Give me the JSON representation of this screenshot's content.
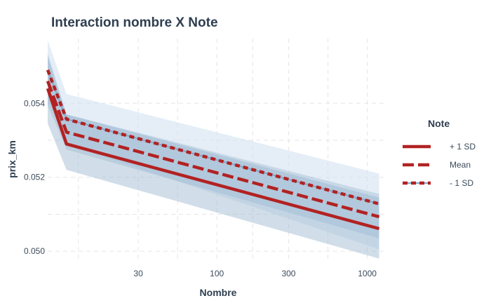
{
  "chart_data": {
    "type": "line",
    "title": "Interaction nombre X Note",
    "xlabel": "Nombre",
    "ylabel": "prix_km",
    "x_scale": "log",
    "x_ticks": [
      30,
      100,
      300,
      1000
    ],
    "x_tick_labels": [
      "30",
      "100",
      "300",
      "1000"
    ],
    "y_ticks": [
      0.05,
      0.052,
      0.054
    ],
    "y_tick_labels": [
      "0.050",
      "0.052",
      "0.054"
    ],
    "xlim": [
      7.5,
      1300
    ],
    "ylim": [
      0.0497,
      0.05575
    ],
    "grid": true,
    "legend": {
      "title": "Note",
      "position": "right"
    },
    "x": [
      7.5,
      10,
      1200
    ],
    "series": [
      {
        "name": "+ 1 SD",
        "line_style": "solid",
        "color": "#b22222",
        "values": [
          0.0544,
          0.0529,
          0.05061
        ],
        "band_lower": [
          0.05345,
          0.0522,
          0.0498
        ],
        "band_upper": [
          0.05535,
          0.0537,
          0.05145
        ]
      },
      {
        "name": "Mean",
        "line_style": "longdash",
        "color": "#b22222",
        "values": [
          0.0546,
          0.05322,
          0.05093
        ],
        "band_lower": [
          0.05395,
          0.05275,
          0.05035
        ],
        "band_upper": [
          0.05525,
          0.0537,
          0.05155
        ]
      },
      {
        "name": "- 1 SD",
        "line_style": "dotted",
        "color": "#b22222",
        "values": [
          0.0549,
          0.05357,
          0.05128
        ],
        "band_lower": [
          0.0541,
          0.0529,
          0.05005
        ],
        "band_upper": [
          0.0557,
          0.05425,
          0.0521
        ]
      }
    ],
    "colors": {
      "line": "#b22222",
      "band": "#9ab6cf",
      "band_outer": "#cfe0f0",
      "text": "#2f3e50"
    }
  }
}
